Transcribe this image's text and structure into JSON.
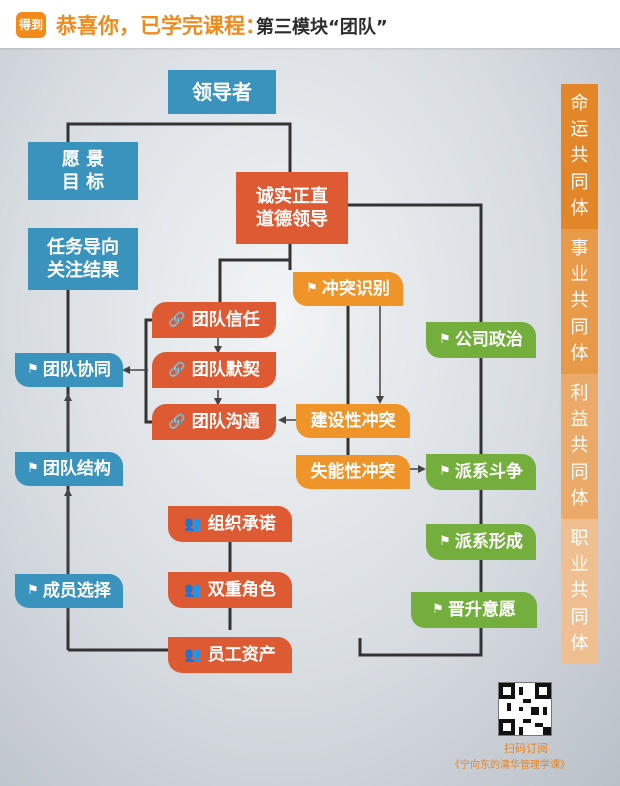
{
  "header": {
    "logo": "得到",
    "title": "恭喜你，已学完课程：",
    "subtitle": "第三模块“团队”"
  },
  "nodes": {
    "leader": "领导者",
    "vision_line1": "愿 景",
    "vision_line2": "目 标",
    "task_line1": "任务导向",
    "task_line2": "关注结果",
    "team_collab": "团队协同",
    "team_structure": "团队结构",
    "member_select": "成员选择",
    "honest_line1": "诚实正直",
    "honest_line2": "道德领导",
    "trust": "团队信任",
    "tacit": "团队默契",
    "communicate": "团队沟通",
    "conflict_identify": "冲突识别",
    "constructive_conflict": "建设性冲突",
    "dysfunctional_conflict": "失能性冲突",
    "org_commit": "组织承诺",
    "dual_role": "双重角色",
    "employee_asset": "员工资产",
    "company_politics": "公司政治",
    "faction_fight": "派系斗争",
    "faction_form": "派系形成",
    "promotion_will": "晋升意愿"
  },
  "communities": [
    {
      "chars": [
        "命",
        "运",
        "共",
        "同",
        "体"
      ],
      "color": "#e3862a"
    },
    {
      "chars": [
        "事",
        "业",
        "共",
        "同",
        "体"
      ],
      "color": "#e89a49"
    },
    {
      "chars": [
        "利",
        "益",
        "共",
        "同",
        "体"
      ],
      "color": "#ebaa6a"
    },
    {
      "chars": [
        "职",
        "业",
        "共",
        "同",
        "体"
      ],
      "color": "#efbf91"
    }
  ],
  "footer": {
    "qr_label": "扫码订阅",
    "qr_sub": "《宁向东的清华管理学课》"
  },
  "colors": {
    "blue": "#3a93bd",
    "red": "#de5a33",
    "orange": "#ef9428",
    "green": "#74ae3c",
    "accent": "#ef8a1d"
  },
  "icons": {
    "flag": "flag-icon",
    "link": "link-icon",
    "person": "person-icon"
  }
}
